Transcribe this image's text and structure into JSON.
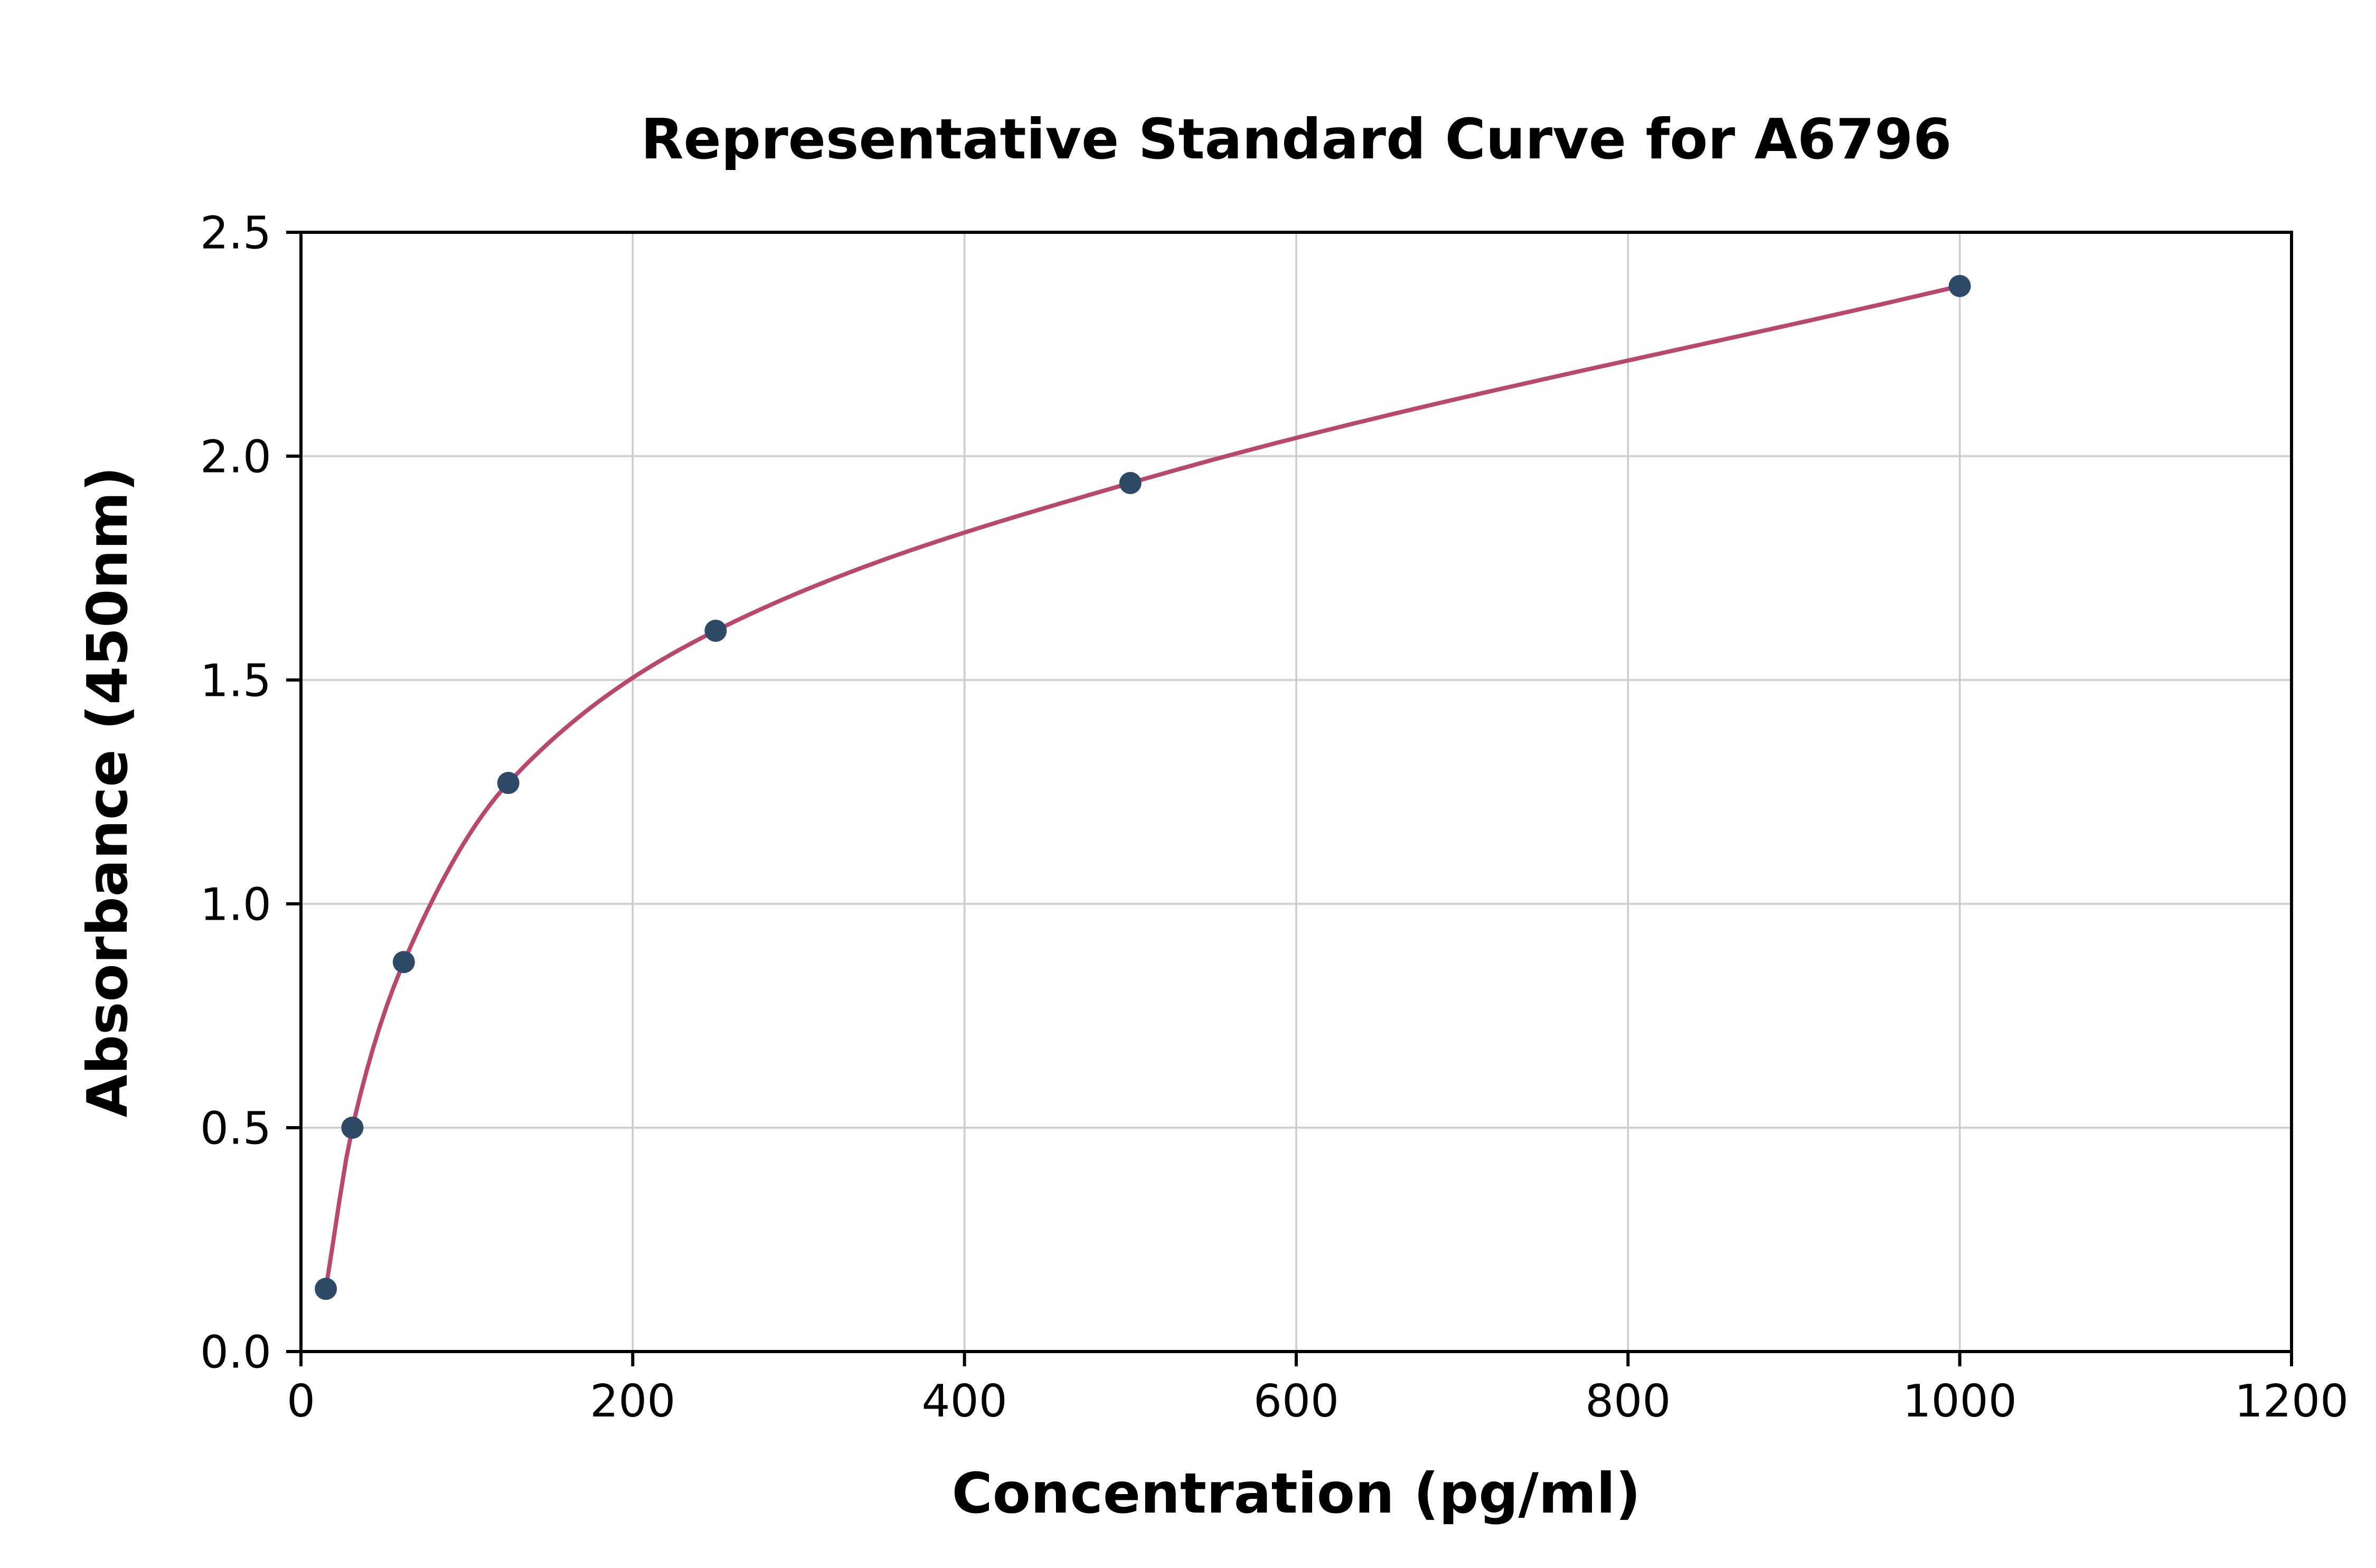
{
  "chart_data": {
    "type": "scatter",
    "title": "Representative Standard Curve for A6796",
    "xlabel": "Concentration (pg/ml)",
    "ylabel": "Absorbance (450nm)",
    "xlim": [
      0,
      1200
    ],
    "ylim": [
      0,
      2.5
    ],
    "x_ticks": [
      0,
      200,
      400,
      600,
      800,
      1000,
      1200
    ],
    "x_tick_labels": [
      "0",
      "200",
      "400",
      "600",
      "800",
      "1000",
      "1200"
    ],
    "y_ticks": [
      0.0,
      0.5,
      1.0,
      1.5,
      2.0,
      2.5
    ],
    "y_tick_labels": [
      "0.0",
      "0.5",
      "1.0",
      "1.5",
      "2.0",
      "2.5"
    ],
    "grid": true,
    "legend": "none",
    "points": [
      {
        "x": 15,
        "y": 0.14
      },
      {
        "x": 31,
        "y": 0.5
      },
      {
        "x": 62,
        "y": 0.87
      },
      {
        "x": 125,
        "y": 1.27
      },
      {
        "x": 250,
        "y": 1.61
      },
      {
        "x": 500,
        "y": 1.94
      },
      {
        "x": 1000,
        "y": 2.38
      }
    ],
    "colors": {
      "curve": "#b8486d",
      "points": "#2e4a66",
      "grid": "#cccccc",
      "axes": "#000000",
      "background": "#ffffff"
    }
  }
}
